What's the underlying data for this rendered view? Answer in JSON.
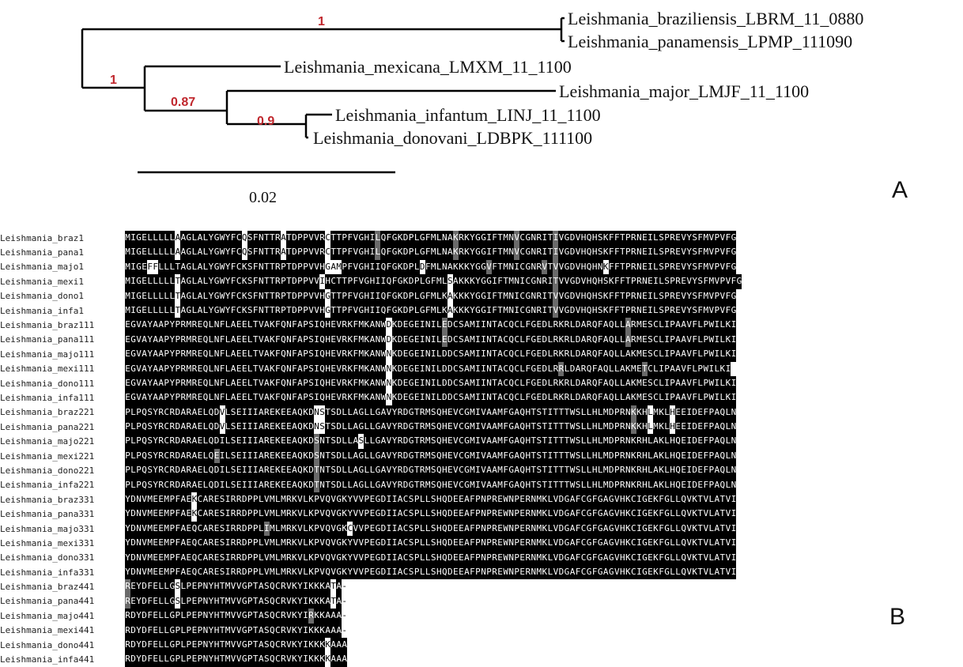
{
  "tree": {
    "taxa": [
      "Leishmania_braziliensis_LBRM_11_0880",
      "Leishmania_panamensis_LPMP_111090",
      "Leishmania_mexicana_LMXM_11_1100",
      "Leishmania_major_LMJF_11_1100",
      "Leishmania_infantum_LINJ_11_1100",
      "Leishmania_donovani_LDBPK_111100"
    ],
    "support_values": [
      "1",
      "1",
      "0.87",
      "0.9"
    ],
    "scale_bar_label": "0.02",
    "panel_label": "A",
    "colors": {
      "support": "#c0272d",
      "branches": "#000000"
    }
  },
  "alignment": {
    "panel_label": "B",
    "colors": {
      "identical": "#000000",
      "similar": "#6a6a6a",
      "different": "#ffffff"
    },
    "blocks": [
      {
        "start": "1",
        "rows": [
          {
            "name": "Leishmania_braz",
            "seq": "MIGELLLLLAAGLALYGWYFCQSFNTTRATDPPVVRCTTPFVGHILQFGKDPLGFMLNAKRKYGGIFTMNVCGNRITIVGDVHQHSKFFTPRNEILSPREVYSFMVPVFG",
            "hl": {
              "9": "w",
              "21": "w",
              "28": "w",
              "36": "w",
              "45": "g",
              "59": "g",
              "70": "g",
              "77": "g"
            }
          },
          {
            "name": "Leishmania_pana",
            "seq": "MIGELLLLLAAGLALYGWYFCQSFNTTRATDPPVVRCTTPFVGHILQFGKDPLGFMLNAKRKYGGIFTMNVCGNRITIVGDVHQHSKFFTPRNEILSPREVYSFMVPVFG",
            "hl": {
              "9": "w",
              "21": "w",
              "28": "w",
              "36": "w",
              "45": "g",
              "59": "g",
              "70": "g",
              "77": "g"
            }
          },
          {
            "name": "Leishmania_majo",
            "seq": "MIGEFFLLLTAGLALYGWYFCKSFNTTRPTDPPVVHGAMPFVGHIIQFGKDPLDFMLNAKKKYGGVFTMNICGNRVTVVGDVHQHNKFFTPRNEILSPREVYSFMVPVFG",
            "hl": {
              "4": "w",
              "5": "w",
              "36": "w",
              "37": "w",
              "38": "w",
              "53": "w",
              "65": "g",
              "75": "g",
              "77": "g",
              "86": "w"
            }
          },
          {
            "name": "Leishmania_mexi",
            "seq": "MIGELLLLLTAGLALYGWYFCKSFNTTRPTDPPVVIHCTTPFVGHIIQFGKDPLGFMLSAKKKYGGIFTMNICGNRITVVGDVHQHSKFFTPRNEILSPREVYSFMVPVFG",
            "hl": {
              "9": "w",
              "35": "w",
              "58": "w",
              "77": "g"
            }
          },
          {
            "name": "Leishmania_dono",
            "seq": "MIGELLLLLTAGLALYGWYFCKSFNTTRPTDPPVVHGTTPFVGHIIQFGKDPLGFMLKAKKKYGGIFTMNICGNRITVVGDVHQHSKFFTPRNEILSPREVYSFMVPVFG",
            "hl": {
              "9": "w",
              "36": "w",
              "58": "w",
              "77": "g"
            }
          },
          {
            "name": "Leishmania_infa",
            "seq": "MIGELLLLLTAGLALYGWYFCKSFNTTRPTDPPVVHGTTPFVGHIIQFGKDPLGFMLKAKKKYGGIFTMNICGNRITVVGDVHQHSKFFTPRNEILSPREVYSFMVPVFG",
            "hl": {
              "9": "w",
              "36": "w",
              "58": "w",
              "77": "g"
            }
          }
        ]
      },
      {
        "start": "111",
        "rows": [
          {
            "name": "Leishmania_braz",
            "seq": "EGVAYAAPYPRMREQLNFLAEELTVAKFQNFAPSIQHEVRKFMKANWDKDEGEINILEDCSAMIINTACQCLFGEDLRKRLDARQFAQLLARMESCLIPAAVFLPWILKI",
            "hl": {
              "47": "w",
              "57": "g",
              "90": "g"
            }
          },
          {
            "name": "Leishmania_pana",
            "seq": "EGVAYAAPYPRMREQLNFLAEELTVAKFQNFAPSIQHEVRKFMKANWDKDEGEINILEDCSAMIINTACQCLFGEDLRKRLDARQFAQLLARMESCLIPAAVFLPWILKI",
            "hl": {
              "47": "w",
              "57": "g",
              "90": "g"
            }
          },
          {
            "name": "Leishmania_majo",
            "seq": "EGVAYAAPYPRMREQLNFLAEELTVAKFQNFAPSIQHEVRKFMKANWNKDEGEINILDDCSAMIINTACQCLFGEDLRKRLDARQFAQLLAKMESCLIPAAVFLPWILKI",
            "hl": {
              "47": "w"
            }
          },
          {
            "name": "Leishmania_mexi",
            "seq": "EGVAYAAPYPRMREQLNFLAEELTVAKFQNFAPSIQHEVRKFMKANWNKDEGEINILDDCSAMIINTACQCLFGEDLRRLDARQFAQLLAKMETCLIPAAVFLPWILKI",
            "hl": {
              "47": "w",
              "78": "g",
              "93": "g"
            }
          },
          {
            "name": "Leishmania_dono",
            "seq": "EGVAYAAPYPRMREQLNFLAEELTVAKFQNFAPSIQHEVRKFMKANWNKDEGEINILDDCSAMIINTACQCLFGEDLRKRLDARQFAQLLAKMESCLIPAAVFLPWILKI",
            "hl": {
              "47": "w"
            }
          },
          {
            "name": "Leishmania_infa",
            "seq": "EGVAYAAPYPRMREQLNFLAEELTVAKFQNFAPSIQHEVRKFMKANWNKDEGEINILDDCSAMIINTACQCLFGEDLRKRLDARQFAQLLAKMESCLIPAAVFLPWILKI",
            "hl": {
              "47": "w"
            }
          }
        ]
      },
      {
        "start": "221",
        "rows": [
          {
            "name": "Leishmania_braz",
            "seq": "PLPQSYRCRDARAELQDVLSEIIIAREKEEAQKDNSTSDLLAGLLGAVYRDGTRMSQHEVCGMIVAAMFGAQHTSTITTTWSLLHLMDPRNKKHLMKLHEEIDEFPAQLN",
            "hl": {
              "17": "w",
              "34": "w",
              "35": "w",
              "91": "g",
              "94": "w",
              "98": "w"
            }
          },
          {
            "name": "Leishmania_pana",
            "seq": "PLPQSYRCRDARAELQDVLSEIIIAREKEEAQKDNSTSDLLAGLLGAVYRDGTRMSQHEVCGMIVAAMFGAQHTSTITTTWSLLHLMDPRNKKHLMKLHEEIDEFPAQLN",
            "hl": {
              "17": "w",
              "34": "w",
              "35": "w",
              "91": "g",
              "94": "w",
              "98": "w"
            }
          },
          {
            "name": "Leishmania_majo",
            "seq": "PLPQSYRCRDARAELQDILSEIIIAREKEEAQKDSNTSDLLASLLGAVYRDGTRMSQHEVCGMIVAAMFGAQHTSTITTTWSLLHLMDPRNKRHLAKLHQEIDEFPAQLN",
            "hl": {
              "34": "g",
              "42": "w"
            }
          },
          {
            "name": "Leishmania_mexi",
            "seq": "PLPQSYRCRDARAELQEILSEIIIAREKEEAQKDSNTSDLLAGLLGAVYRDGTRMSQHEVCGMIVAAMFGAQHTSTITTTWSLLHLMDPRNKRHLAKLHQEIDEFPAQLN",
            "hl": {
              "16": "g",
              "34": "g"
            }
          },
          {
            "name": "Leishmania_dono",
            "seq": "PLPQSYRCRDARAELQDILSEIIIAREKEEAQKDTNTSDLLAGLLGAVYRDGTRMSQHEVCGMIVAAMFGAQHTSTITTTWSLLHLMDPRNKRHLAKLHQEIDEFPAQLN",
            "hl": {
              "34": "g"
            }
          },
          {
            "name": "Leishmania_infa",
            "seq": "PLPQSYRCRDARAELQDILSEIIIAREKEEAQKDTNTSDLLAGLLGAVYRDGTRMSQHEVCGMIVAAMFGAQHTSTITTTWSLLHLMDPRNKRHLAKLHQEIDEFPAQLN",
            "hl": {
              "34": "g"
            }
          }
        ]
      },
      {
        "start": "331",
        "rows": [
          {
            "name": "Leishmania_braz",
            "seq": "YDNVMEEMPFAEKCARESIRRDPPLVMLMRKVLKPVQVGKYVVPEGDIIACSPLLSHQDEEAFPNPREWNPERNMKLVDGAFCGFGAGVHKCIGEKFGLLQVKTVLATVI",
            "hl": {
              "12": "w"
            }
          },
          {
            "name": "Leishmania_pana",
            "seq": "YDNVMEEMPFAEKCARESIRRDPPLVMLMRKVLKPVQVGKYVVPEGDIIACSPLLSHQDEEAFPNPREWNPERNMKLVDGAFCGFGAGVHKCIGEKFGLLQVKTVLATVI",
            "hl": {
              "12": "w"
            }
          },
          {
            "name": "Leishmania_majo",
            "seq": "YDNVMEEMPFAEQCARESIRRDPPLIMLMRKVLKPVQVGKCVVPEGDIIACSPLLSHQDEEAFPNPREWNPERNMKLVDGAFCGFGAGVHKCIGEKFGLLQVKTVLATVI",
            "hl": {
              "25": "g",
              "40": "w"
            }
          },
          {
            "name": "Leishmania_mexi",
            "seq": "YDNVMEEMPFAEQCARESIRRDPPLVMLMRKVLKPVQVGKYVVPEGDIIACSPLLSHQDEEAFPNPREWNPERNMKLVDGAFCGFGAGVHKCIGEKFGLLQVKTVLATVI",
            "hl": {}
          },
          {
            "name": "Leishmania_dono",
            "seq": "YDNVMEEMPFAEQCARESIRRDPPLVMLMRKVLKPVQVGKYVVPEGDIIACSPLLSHQDEEAFPNPREWNPERNMKLVDGAFCGFGAGVHKCIGEKFGLLQVKTVLATVI",
            "hl": {}
          },
          {
            "name": "Leishmania_infa",
            "seq": "YDNVMEEMPFAEQCARESIRRDPPLVMLMRKVLKPVQVGKYVVPEGDIIACSPLLSHQDEEAFPNPREWNPERNMKLVDGAFCGFGAGVHKCIGEKFGLLQVKTVLATVI",
            "hl": {}
          }
        ]
      },
      {
        "start": "441",
        "rows": [
          {
            "name": "Leishmania_braz",
            "seq": "REYDFELLGSLPEPNYHTMVVGPTASQCRVKYIKKKATA-",
            "hl": {
              "0": "g",
              "9": "w",
              "37": "w"
            }
          },
          {
            "name": "Leishmania_pana",
            "seq": "REYDFELLGSLPEPNYHTMVVGPTASQCRVKYIKKKATA-",
            "hl": {
              "0": "g",
              "9": "w",
              "37": "w"
            }
          },
          {
            "name": "Leishmania_majo",
            "seq": "RDYDFELLGPLPEPNYHTMVVGPTASQCRVKYIRKKAAA-",
            "hl": {
              "33": "g"
            }
          },
          {
            "name": "Leishmania_mexi",
            "seq": "RDYDFELLGPLPEPNYHTMVVGPTASQCRVKYIKKKAAA-",
            "hl": {}
          },
          {
            "name": "Leishmania_dono",
            "seq": "RDYDFELLGPLPEPNYHTMVVGPTASQCRVKYIKKKKAAA",
            "hl": {
              "36": "w"
            }
          },
          {
            "name": "Leishmania_infa",
            "seq": "RDYDFELLGPLPEPNYHTMVVGPTASQCRVKYIKKKKAAA",
            "hl": {
              "36": "w"
            }
          }
        ]
      }
    ]
  }
}
